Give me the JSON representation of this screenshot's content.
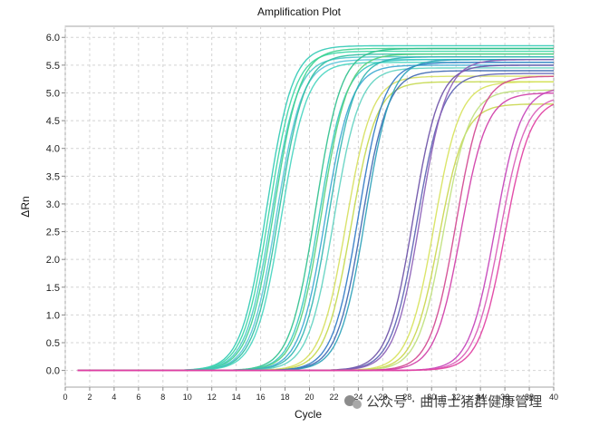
{
  "chart_data": {
    "type": "line",
    "title": "Amplification Plot",
    "xlabel": "Cycle",
    "ylabel": "ΔRn",
    "xlim": [
      0,
      40
    ],
    "ylim": [
      -0.3,
      6.2
    ],
    "x_ticks": [
      0,
      2,
      4,
      6,
      8,
      10,
      12,
      14,
      16,
      18,
      20,
      22,
      24,
      26,
      28,
      30,
      32,
      34,
      36,
      38,
      40
    ],
    "x_tick_labels": [
      "0",
      "2",
      "4",
      "6",
      "8",
      "10",
      "12",
      "14",
      "16",
      "18",
      "20",
      "22",
      "24",
      "26",
      "28",
      "30",
      "32",
      "34",
      "36",
      "38",
      "40"
    ],
    "y_ticks": [
      0.0,
      0.5,
      1.0,
      1.5,
      2.0,
      2.5,
      3.0,
      3.5,
      4.0,
      4.5,
      5.0,
      5.5,
      6.0
    ],
    "y_tick_labels": [
      "0.0",
      "0.5",
      "1.0",
      "1.5",
      "2.0",
      "2.5",
      "3.0",
      "3.5",
      "4.0",
      "4.5",
      "5.0",
      "5.5",
      "6.0"
    ],
    "grid": true,
    "legend": "none",
    "x_start": 1,
    "x_end": 40,
    "series_model": "sigmoid: deltaRn = plateau / (1 + exp(-(cycle - midpoint) / slope))",
    "series": [
      {
        "color": "#2fc9b4",
        "midpoint": 16.5,
        "plateau": 5.85,
        "slope": 1.05
      },
      {
        "color": "#37d6a3",
        "midpoint": 16.7,
        "plateau": 5.75,
        "slope": 1.05
      },
      {
        "color": "#48c7c9",
        "midpoint": 16.9,
        "plateau": 5.65,
        "slope": 1.05
      },
      {
        "color": "#3bd08e",
        "midpoint": 17.1,
        "plateau": 5.8,
        "slope": 1.05
      },
      {
        "color": "#56c2d8",
        "midpoint": 17.3,
        "plateau": 5.6,
        "slope": 1.05
      },
      {
        "color": "#2dbfa0",
        "midpoint": 17.5,
        "plateau": 5.7,
        "slope": 1.05
      },
      {
        "color": "#44d4bf",
        "midpoint": 17.7,
        "plateau": 5.55,
        "slope": 1.05
      },
      {
        "color": "#2ec08c",
        "midpoint": 20.5,
        "plateau": 5.8,
        "slope": 1.05
      },
      {
        "color": "#33c7c0",
        "midpoint": 20.8,
        "plateau": 5.6,
        "slope": 1.05
      },
      {
        "color": "#54cf7a",
        "midpoint": 21.0,
        "plateau": 5.7,
        "slope": 1.05
      },
      {
        "color": "#3aa7d2",
        "midpoint": 21.3,
        "plateau": 5.5,
        "slope": 1.05
      },
      {
        "color": "#2fb5b0",
        "midpoint": 21.6,
        "plateau": 5.65,
        "slope": 1.05
      },
      {
        "color": "#5ed2c0",
        "midpoint": 22.0,
        "plateau": 5.45,
        "slope": 1.05
      },
      {
        "color": "#d6df5c",
        "midpoint": 23.0,
        "plateau": 5.3,
        "slope": 1.05
      },
      {
        "color": "#c4d84a",
        "midpoint": 23.4,
        "plateau": 5.2,
        "slope": 1.05
      },
      {
        "color": "#2f78c4",
        "midpoint": 24.0,
        "plateau": 5.55,
        "slope": 1.05
      },
      {
        "color": "#3c66b0",
        "midpoint": 24.3,
        "plateau": 5.4,
        "slope": 1.05
      },
      {
        "color": "#2aa0b8",
        "midpoint": 24.6,
        "plateau": 5.6,
        "slope": 1.05
      },
      {
        "color": "#6a4fa6",
        "midpoint": 28.5,
        "plateau": 5.5,
        "slope": 1.05
      },
      {
        "color": "#5a5fb2",
        "midpoint": 28.8,
        "plateau": 5.35,
        "slope": 1.05
      },
      {
        "color": "#8a5cb6",
        "midpoint": 29.1,
        "plateau": 5.6,
        "slope": 1.05
      },
      {
        "color": "#d7e25a",
        "midpoint": 30.2,
        "plateau": 5.2,
        "slope": 1.05
      },
      {
        "color": "#c9d64b",
        "midpoint": 30.6,
        "plateau": 4.8,
        "slope": 1.05
      },
      {
        "color": "#bfe07a",
        "midpoint": 31.0,
        "plateau": 5.05,
        "slope": 1.05
      },
      {
        "color": "#d2448f",
        "midpoint": 32.0,
        "plateau": 5.3,
        "slope": 1.05
      },
      {
        "color": "#cf3aa6",
        "midpoint": 32.4,
        "plateau": 5.0,
        "slope": 1.05
      },
      {
        "color": "#c43fb8",
        "midpoint": 35.2,
        "plateau": 5.1,
        "slope": 1.05
      },
      {
        "color": "#d95ab6",
        "midpoint": 35.6,
        "plateau": 4.95,
        "slope": 1.05
      },
      {
        "color": "#e03ca0",
        "midpoint": 36.0,
        "plateau": 4.9,
        "slope": 1.05
      }
    ]
  },
  "watermark": {
    "text": "公众号 · 曲博士猪群健康管理"
  }
}
